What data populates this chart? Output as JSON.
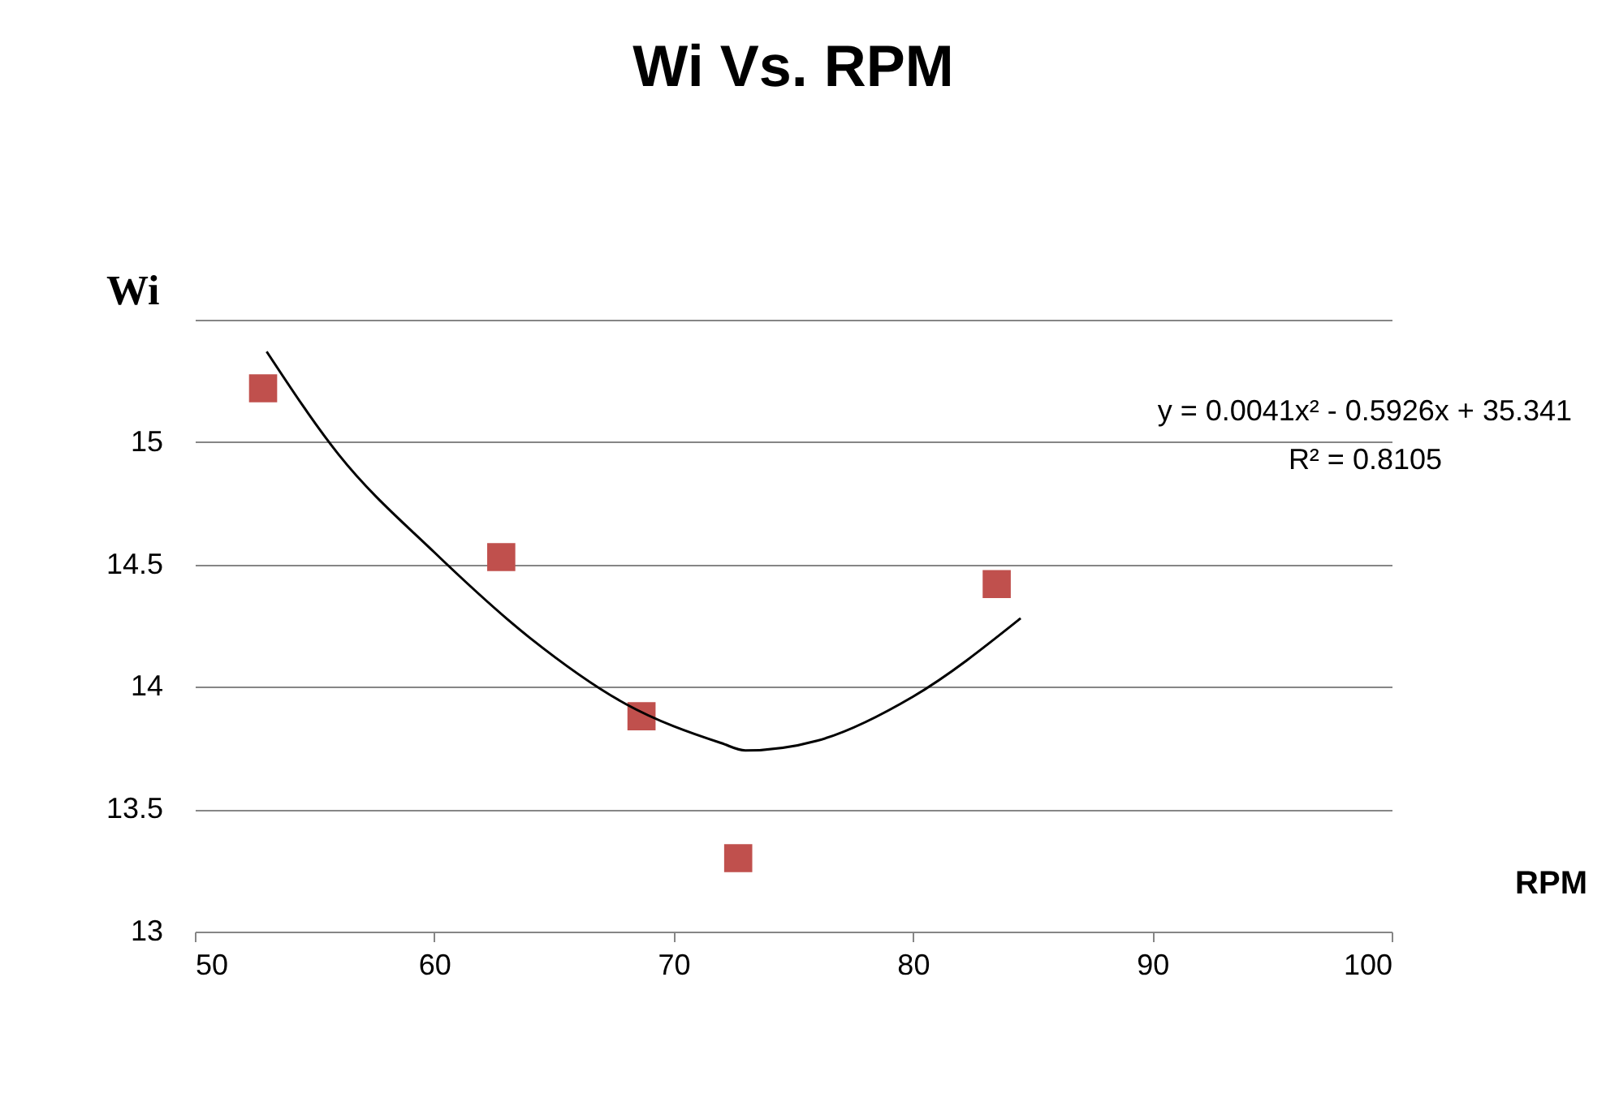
{
  "chart_data": {
    "type": "scatter",
    "title": "Wi Vs. RPM",
    "xlabel": "RPM",
    "ylabel": "Wi",
    "xlim": [
      50,
      100
    ],
    "xticks": [
      50,
      60,
      70,
      80,
      90,
      100
    ],
    "ylim": [
      13,
      15.5
    ],
    "yticks": [
      13,
      13.5,
      14,
      14.5,
      15,
      {
        "value": 15.5,
        "label": null
      }
    ],
    "grid": "y",
    "annotations": [
      "y = 0.0041x² - 0.5926x + 35.341",
      "R² = 0.8105"
    ],
    "series": [
      {
        "marker": "square",
        "color": "#c0504d",
        "x": [
          52.85,
          62.8,
          68.66,
          72.7,
          83.5
        ],
        "values": [
          15.22,
          14.53,
          13.88,
          13.3,
          14.42
        ]
      },
      {
        "type": "line",
        "color": "#000000",
        "x": [
          53,
          56,
          60,
          64,
          68,
          72,
          73,
          76,
          80,
          84.5
        ],
        "values": [
          15.37,
          14.95,
          14.55,
          14.2,
          13.93,
          13.77,
          13.74,
          13.78,
          13.96,
          14.28
        ]
      }
    ]
  }
}
